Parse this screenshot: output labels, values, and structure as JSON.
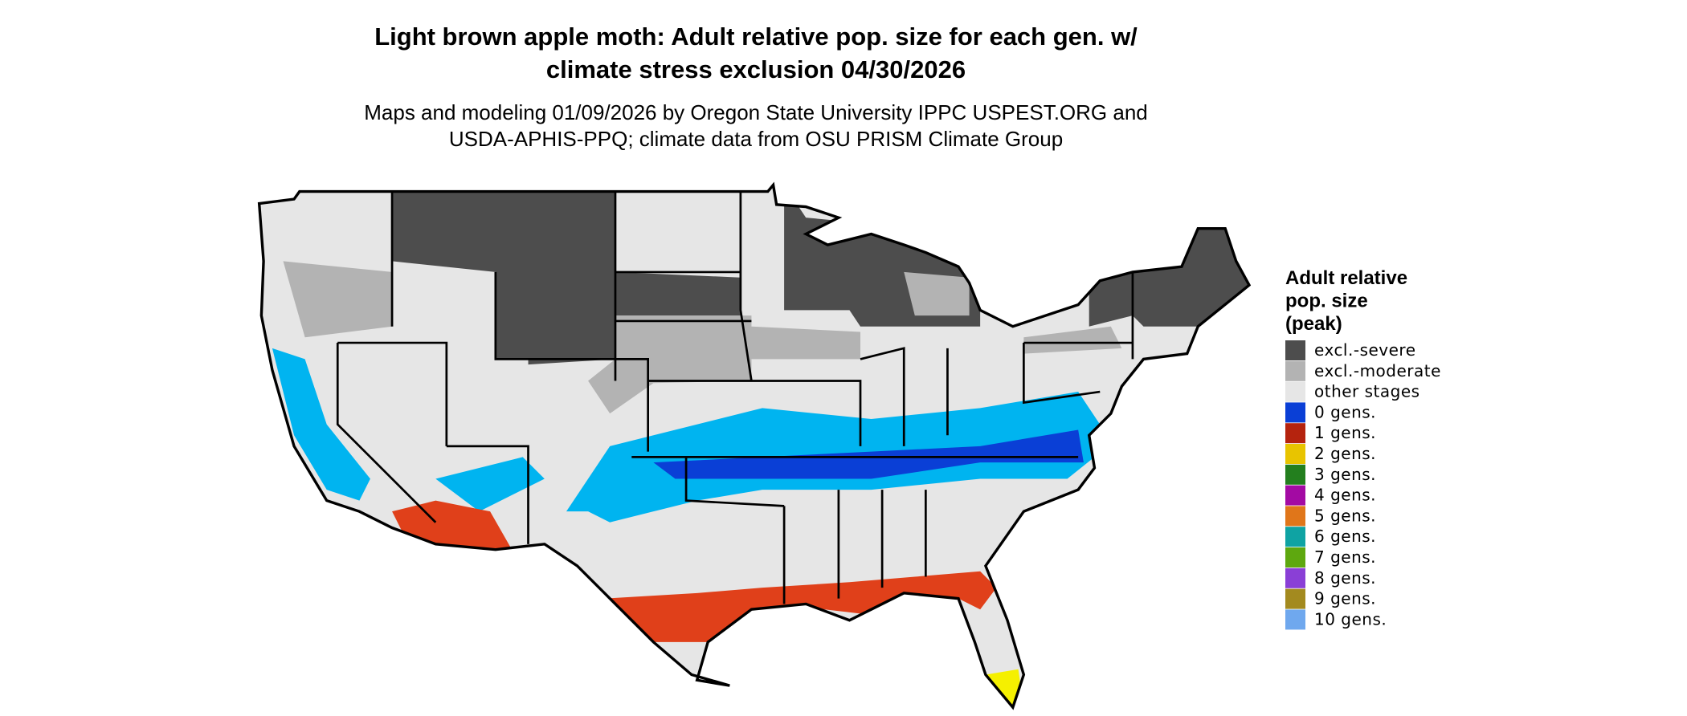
{
  "title": [
    "Light brown apple moth: Adult relative pop. size for each gen. w/",
    "climate stress exclusion 04/30/2026"
  ],
  "subtitle": [
    "Maps and modeling 01/09/2026 by Oregon State University IPPC USPEST.ORG and",
    "USDA-APHIS-PPQ; climate data from OSU PRISM Climate Group"
  ],
  "legend": {
    "title": [
      "Adult relative",
      "pop. size",
      "(peak)"
    ],
    "items": [
      {
        "label": "excl.-severe",
        "color": "#4d4d4d"
      },
      {
        "label": "excl.-moderate",
        "color": "#b3b3b3"
      },
      {
        "label": "other stages",
        "color": "#e6e6e6"
      },
      {
        "label": "0 gens.",
        "color": "#0a3fd6"
      },
      {
        "label": "1 gens.",
        "color": "#b5230e"
      },
      {
        "label": "2 gens.",
        "color": "#e8c400"
      },
      {
        "label": "3 gens.",
        "color": "#237f1e"
      },
      {
        "label": "4 gens.",
        "color": "#a30aa3"
      },
      {
        "label": "5 gens.",
        "color": "#e0761a"
      },
      {
        "label": "6 gens.",
        "color": "#0fa3a3"
      },
      {
        "label": "7 gens.",
        "color": "#5ea80f"
      },
      {
        "label": "8 gens.",
        "color": "#8a3fd6"
      },
      {
        "label": "9 gens.",
        "color": "#a38a1f"
      },
      {
        "label": "10 gens.",
        "color": "#6fa8ee"
      }
    ]
  }
}
